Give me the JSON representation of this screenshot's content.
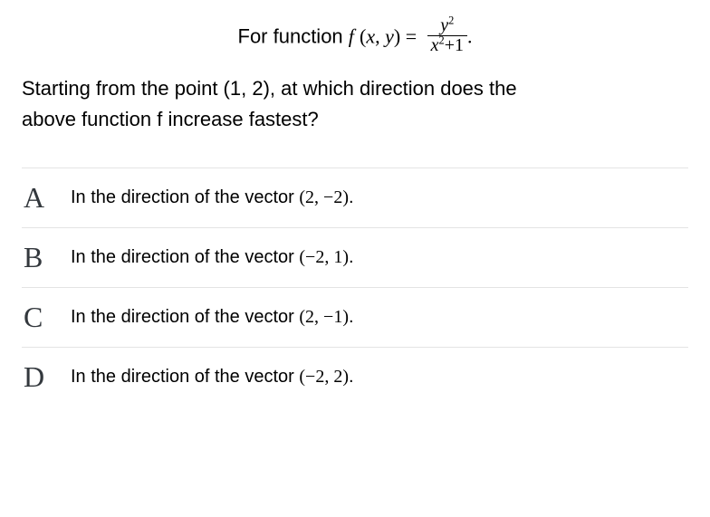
{
  "formula": {
    "prefix": "For function ",
    "func_letter": "f",
    "open_args": " (",
    "arg1": "x",
    "comma": ", ",
    "arg2": "y",
    "close_args_eq": ") = ",
    "num_var": "y",
    "num_exp": "2",
    "den_var": "x",
    "den_exp": "2",
    "den_plus1": "+1",
    "trailing": "."
  },
  "question": {
    "line1": "Starting from the point (1, 2), at which direction does the",
    "line2": "above function f increase fastest?"
  },
  "options": [
    {
      "letter": "A",
      "prefix": "In the direction of the vector ",
      "vec": "(2, −2)",
      "suffix": "."
    },
    {
      "letter": "B",
      "prefix": "In the direction of the vector ",
      "vec": "(−2, 1)",
      "suffix": "."
    },
    {
      "letter": "C",
      "prefix": "In the direction of the vector ",
      "vec": "(2, −1)",
      "suffix": "."
    },
    {
      "letter": "D",
      "prefix": "In the direction of the vector ",
      "vec": "(−2, 2)",
      "suffix": "."
    }
  ],
  "style": {
    "body_font_color": "#000000",
    "border_color": "#e4e4e4",
    "letter_color": "#33383d",
    "background": "#ffffff",
    "formula_fontsize": 22,
    "question_fontsize": 22,
    "option_fontsize": 20,
    "letter_fontsize": 32
  }
}
